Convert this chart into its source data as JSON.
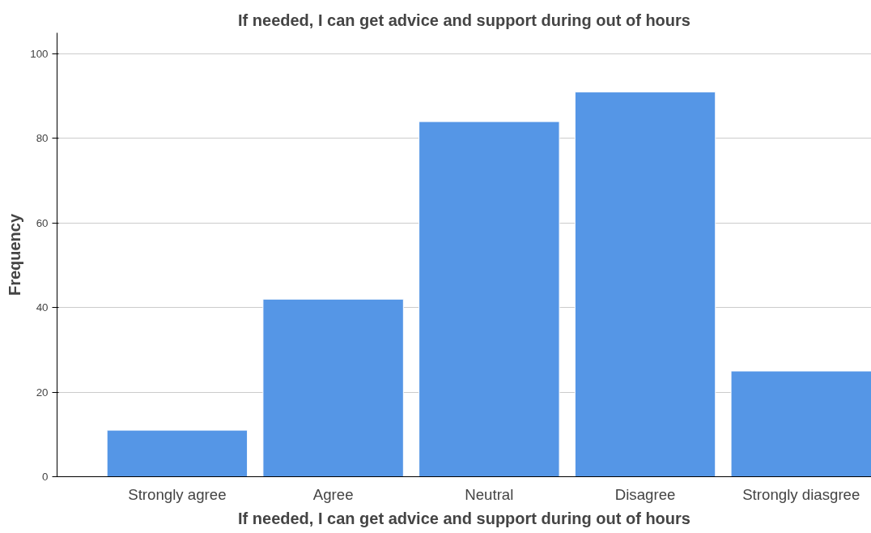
{
  "chart_data": {
    "type": "bar",
    "title": "If needed, I can get advice and support during out of hours",
    "xlabel": "If needed, I can get advice and support during out of hours",
    "ylabel": "Frequency",
    "categories": [
      "Strongly agree",
      "Agree",
      "Neutral",
      "Disagree",
      "Strongly diasgree"
    ],
    "values": [
      11,
      42,
      84,
      91,
      25
    ],
    "color": "#5596e6",
    "ylim": [
      0,
      105
    ],
    "yticks": [
      0,
      20,
      40,
      60,
      80,
      100
    ],
    "grid": "y"
  }
}
